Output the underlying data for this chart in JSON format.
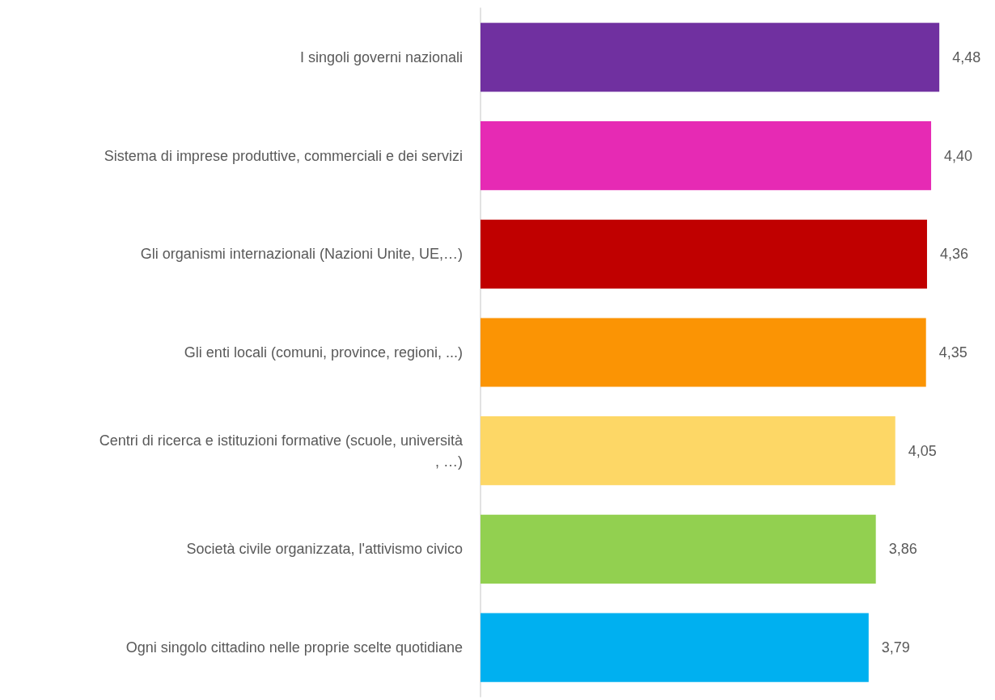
{
  "chart_data": {
    "type": "bar",
    "orientation": "horizontal",
    "categories": [
      "I singoli governi nazionali",
      "Sistema di imprese produttive, commerciali e dei servizi",
      "Gli organismi internazionali (Nazioni Unite, UE,…)",
      "Gli enti locali (comuni, province, regioni, ...)",
      "Centri di ricerca e istituzioni formative (scuole, università, …)",
      "Società civile organizzata, l'attivismo civico",
      "Ogni singolo cittadino nelle proprie scelte quotidiane"
    ],
    "values": [
      4.48,
      4.4,
      4.36,
      4.35,
      4.05,
      3.86,
      3.79
    ],
    "value_labels": [
      "4,48",
      "4,40",
      "4,36",
      "4,35",
      "4,05",
      "3,86",
      "3,79"
    ],
    "colors": [
      "#7030a0",
      "#e62ab4",
      "#c00000",
      "#fb9404",
      "#fdd766",
      "#92d050",
      "#00b0f0"
    ],
    "grid": false
  }
}
